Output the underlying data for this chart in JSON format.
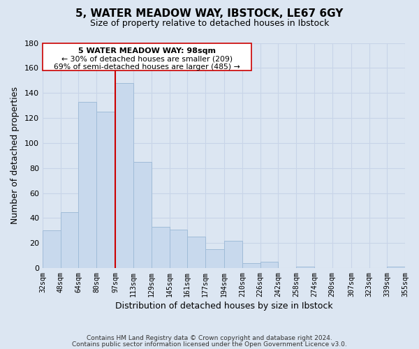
{
  "title": "5, WATER MEADOW WAY, IBSTOCK, LE67 6GY",
  "subtitle": "Size of property relative to detached houses in Ibstock",
  "xlabel": "Distribution of detached houses by size in Ibstock",
  "ylabel": "Number of detached properties",
  "bar_color": "#c8d9ed",
  "bar_edge_color": "#a0bcd8",
  "bin_labels": [
    "32sqm",
    "48sqm",
    "64sqm",
    "80sqm",
    "97sqm",
    "113sqm",
    "129sqm",
    "145sqm",
    "161sqm",
    "177sqm",
    "194sqm",
    "210sqm",
    "226sqm",
    "242sqm",
    "258sqm",
    "274sqm",
    "290sqm",
    "307sqm",
    "323sqm",
    "339sqm",
    "355sqm"
  ],
  "bin_edges": [
    32,
    48,
    64,
    80,
    97,
    113,
    129,
    145,
    161,
    177,
    194,
    210,
    226,
    242,
    258,
    274,
    290,
    307,
    323,
    339,
    355
  ],
  "values": [
    30,
    45,
    133,
    125,
    148,
    85,
    33,
    31,
    25,
    15,
    22,
    4,
    5,
    0,
    1,
    0,
    0,
    0,
    0,
    1
  ],
  "red_line_x": 97,
  "annotation_title": "5 WATER MEADOW WAY: 98sqm",
  "annotation_line1": "← 30% of detached houses are smaller (209)",
  "annotation_line2": "69% of semi-detached houses are larger (485) →",
  "annotation_box_color": "#ffffff",
  "annotation_box_edge": "#cc0000",
  "red_line_color": "#cc0000",
  "grid_color": "#c8d4e8",
  "footer1": "Contains HM Land Registry data © Crown copyright and database right 2024.",
  "footer2": "Contains public sector information licensed under the Open Government Licence v3.0.",
  "yticks": [
    0,
    20,
    40,
    60,
    80,
    100,
    120,
    140,
    160,
    180
  ],
  "ylim": [
    0,
    180
  ],
  "background_color": "#dce6f2"
}
